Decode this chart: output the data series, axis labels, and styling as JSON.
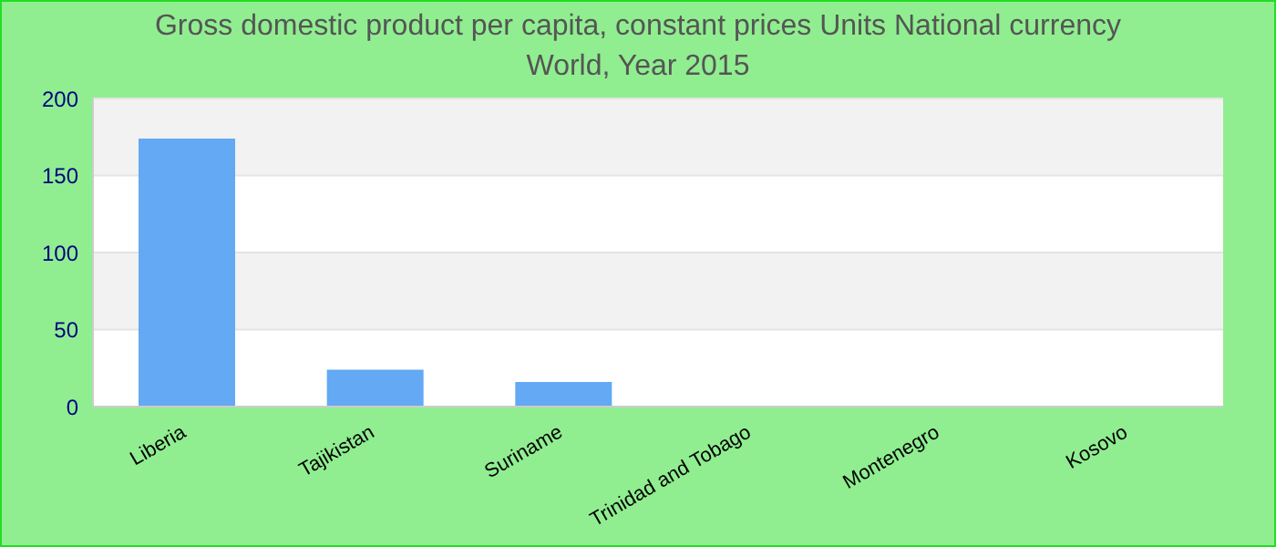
{
  "chart_data": {
    "type": "bar",
    "title": "Gross domestic product per capita, constant prices Units National currency",
    "subtitle": "World, Year 2015",
    "categories": [
      "Liberia",
      "Tajikistan",
      "Suriname",
      "Trinidad and Tobago",
      "Montenegro",
      "Kosovo"
    ],
    "values": [
      174,
      24,
      16,
      0,
      0,
      0
    ],
    "color": "#63a9f4",
    "ylim": [
      0,
      200
    ],
    "yticks": [
      0,
      50,
      100,
      150,
      200
    ],
    "grid": "y"
  }
}
